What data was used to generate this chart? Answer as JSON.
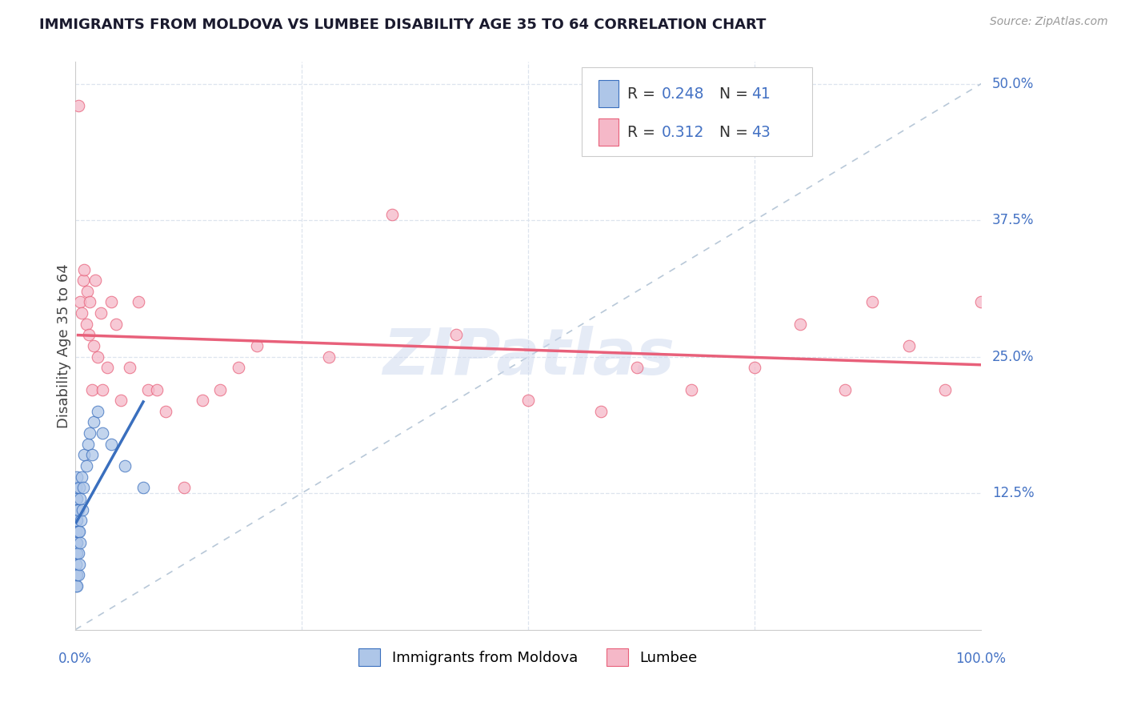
{
  "title": "IMMIGRANTS FROM MOLDOVA VS LUMBEE DISABILITY AGE 35 TO 64 CORRELATION CHART",
  "source": "Source: ZipAtlas.com",
  "ylabel": "Disability Age 35 to 64",
  "legend1_R": "0.248",
  "legend1_N": "41",
  "legend2_R": "0.312",
  "legend2_N": "43",
  "legend1_label": "Immigrants from Moldova",
  "legend2_label": "Lumbee",
  "color_moldova": "#aec6e8",
  "color_lumbee": "#f5b8c8",
  "color_moldova_line": "#3a6fbe",
  "color_lumbee_line": "#e8607a",
  "color_diagonal": "#b8c8d8",
  "background_color": "#ffffff",
  "grid_color": "#dde4ee",
  "watermark": "ZIPatlas",
  "xlim": [
    0.0,
    1.0
  ],
  "ylim": [
    0.0,
    0.52
  ],
  "moldova_x": [
    0.001,
    0.001,
    0.001,
    0.001,
    0.001,
    0.001,
    0.001,
    0.001,
    0.001,
    0.001,
    0.002,
    0.002,
    0.002,
    0.002,
    0.002,
    0.002,
    0.002,
    0.003,
    0.003,
    0.003,
    0.003,
    0.004,
    0.004,
    0.004,
    0.005,
    0.005,
    0.006,
    0.007,
    0.008,
    0.009,
    0.01,
    0.012,
    0.014,
    0.016,
    0.018,
    0.02,
    0.025,
    0.03,
    0.04,
    0.055,
    0.075
  ],
  "moldova_y": [
    0.04,
    0.05,
    0.06,
    0.07,
    0.08,
    0.09,
    0.1,
    0.11,
    0.12,
    0.13,
    0.04,
    0.05,
    0.07,
    0.08,
    0.1,
    0.12,
    0.14,
    0.05,
    0.07,
    0.09,
    0.11,
    0.06,
    0.09,
    0.13,
    0.08,
    0.12,
    0.1,
    0.14,
    0.11,
    0.13,
    0.16,
    0.15,
    0.17,
    0.18,
    0.16,
    0.19,
    0.2,
    0.18,
    0.17,
    0.15,
    0.13
  ],
  "lumbee_x": [
    0.003,
    0.005,
    0.007,
    0.009,
    0.01,
    0.012,
    0.013,
    0.015,
    0.016,
    0.018,
    0.02,
    0.022,
    0.025,
    0.028,
    0.03,
    0.035,
    0.04,
    0.045,
    0.05,
    0.06,
    0.07,
    0.08,
    0.09,
    0.1,
    0.12,
    0.14,
    0.16,
    0.18,
    0.2,
    0.28,
    0.35,
    0.42,
    0.5,
    0.58,
    0.62,
    0.68,
    0.75,
    0.8,
    0.85,
    0.88,
    0.92,
    0.96,
    1.0
  ],
  "lumbee_y": [
    0.48,
    0.3,
    0.29,
    0.32,
    0.33,
    0.28,
    0.31,
    0.27,
    0.3,
    0.22,
    0.26,
    0.32,
    0.25,
    0.29,
    0.22,
    0.24,
    0.3,
    0.28,
    0.21,
    0.24,
    0.3,
    0.22,
    0.22,
    0.2,
    0.13,
    0.21,
    0.22,
    0.24,
    0.26,
    0.25,
    0.38,
    0.27,
    0.21,
    0.2,
    0.24,
    0.22,
    0.24,
    0.28,
    0.22,
    0.3,
    0.26,
    0.22,
    0.3
  ]
}
